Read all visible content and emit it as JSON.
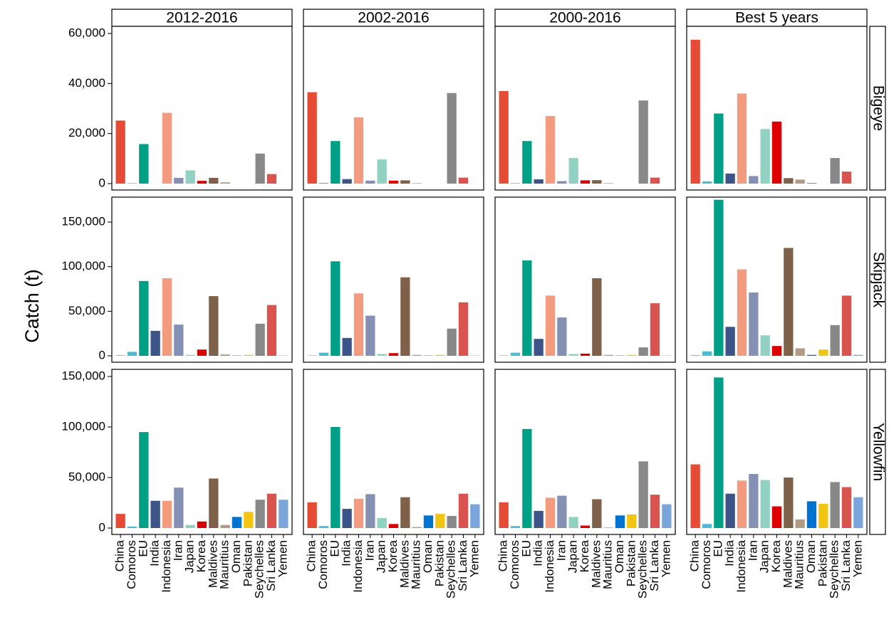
{
  "chart_data": {
    "type": "bar",
    "ylabel": "Catch (t)",
    "xlabel": "",
    "grid": false,
    "legend": "none",
    "periods": [
      "2012-2016",
      "2002-2016",
      "2000-2016",
      "Best 5 years"
    ],
    "categories": [
      "China",
      "Comoros",
      "EU",
      "India",
      "Indonesia",
      "Iran",
      "Japan",
      "Korea",
      "Maldives",
      "Mauritius",
      "Oman",
      "Pakistan",
      "Seychelles",
      "Sri Lanka",
      "Yemen"
    ],
    "category_colors": [
      "#E64B35",
      "#4DBBD5",
      "#00A087",
      "#3C5488",
      "#F39B7F",
      "#8491B4",
      "#91D1C2",
      "#DC0000",
      "#7E6148",
      "#B09C85",
      "#0072CF",
      "#F2C512",
      "#888888",
      "#D9534F",
      "#7AA6DC"
    ],
    "species": [
      {
        "name": "Bigeye",
        "ylim": [
          0,
          60000
        ],
        "ticks": [
          0,
          20000,
          40000,
          60000
        ],
        "tick_labels": [
          "0",
          "20,000",
          "40,000",
          "60,000"
        ],
        "values": [
          [
            25200,
            200,
            15800,
            0,
            28300,
            2300,
            5300,
            1100,
            2300,
            500,
            0,
            0,
            12000,
            3800,
            0
          ],
          [
            36500,
            300,
            17000,
            1800,
            26500,
            1200,
            9700,
            1200,
            1300,
            200,
            0,
            0,
            36200,
            2400,
            0
          ],
          [
            37000,
            200,
            17000,
            1700,
            27000,
            1000,
            10200,
            1300,
            1400,
            200,
            0,
            0,
            33200,
            2400,
            0
          ],
          [
            57500,
            900,
            28000,
            4000,
            36000,
            3000,
            21800,
            24800,
            2200,
            1600,
            200,
            0,
            10200,
            4800,
            0
          ]
        ]
      },
      {
        "name": "Skipjack",
        "ylim": [
          0,
          170000
        ],
        "ticks": [
          0,
          50000,
          100000,
          150000
        ],
        "tick_labels": [
          "0",
          "50,000",
          "100,000",
          "150,000"
        ],
        "values": [
          [
            500,
            4500,
            84000,
            28000,
            87000,
            35000,
            1000,
            7000,
            67000,
            1500,
            300,
            1000,
            36000,
            57000,
            300
          ],
          [
            300,
            3500,
            106000,
            20000,
            70000,
            45000,
            2000,
            3000,
            88000,
            1000,
            300,
            1000,
            30500,
            60000,
            300
          ],
          [
            300,
            3500,
            107000,
            19000,
            67500,
            43000,
            2000,
            2500,
            87000,
            1000,
            300,
            1000,
            9500,
            59000,
            300
          ],
          [
            500,
            5000,
            175000,
            32500,
            97000,
            71000,
            23000,
            11000,
            121000,
            8500,
            1000,
            7000,
            34500,
            67500,
            1000
          ]
        ]
      },
      {
        "name": "Yellowfin",
        "ylim": [
          0,
          150000
        ],
        "ticks": [
          0,
          50000,
          100000,
          150000
        ],
        "tick_labels": [
          "0",
          "50,000",
          "100,000",
          "150,000"
        ],
        "values": [
          [
            14000,
            1500,
            95000,
            27000,
            27000,
            40000,
            3000,
            6500,
            49000,
            3000,
            11000,
            16000,
            28000,
            34000,
            28000
          ],
          [
            25500,
            2000,
            100000,
            19000,
            29000,
            33500,
            10000,
            4000,
            30500,
            1000,
            12500,
            14000,
            12000,
            34000,
            23500
          ],
          [
            25500,
            2000,
            98000,
            17000,
            30000,
            32000,
            11000,
            2500,
            28500,
            500,
            12500,
            13500,
            66000,
            33000,
            23500
          ],
          [
            63000,
            4000,
            149000,
            34000,
            47000,
            53500,
            47500,
            21500,
            50000,
            8500,
            26500,
            24000,
            45500,
            40500,
            30500
          ]
        ]
      }
    ]
  }
}
